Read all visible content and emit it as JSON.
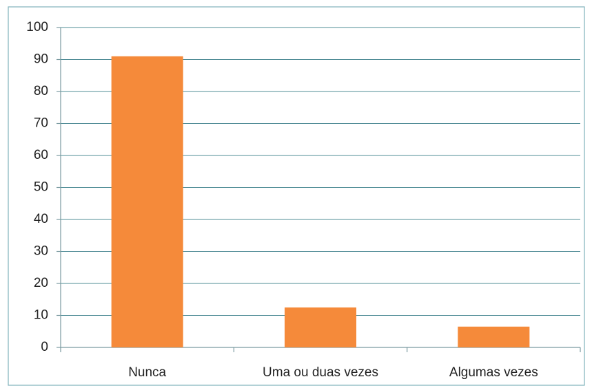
{
  "chart_data": {
    "type": "bar",
    "categories": [
      "Nunca",
      "Uma ou duas vezes",
      "Algumas vezes"
    ],
    "values": [
      91,
      12.5,
      6.5
    ],
    "color": "#f58a3a",
    "ylim": [
      0,
      100
    ],
    "yticks": [
      0,
      10,
      20,
      30,
      40,
      50,
      60,
      70,
      80,
      90,
      100
    ],
    "grid": true
  }
}
